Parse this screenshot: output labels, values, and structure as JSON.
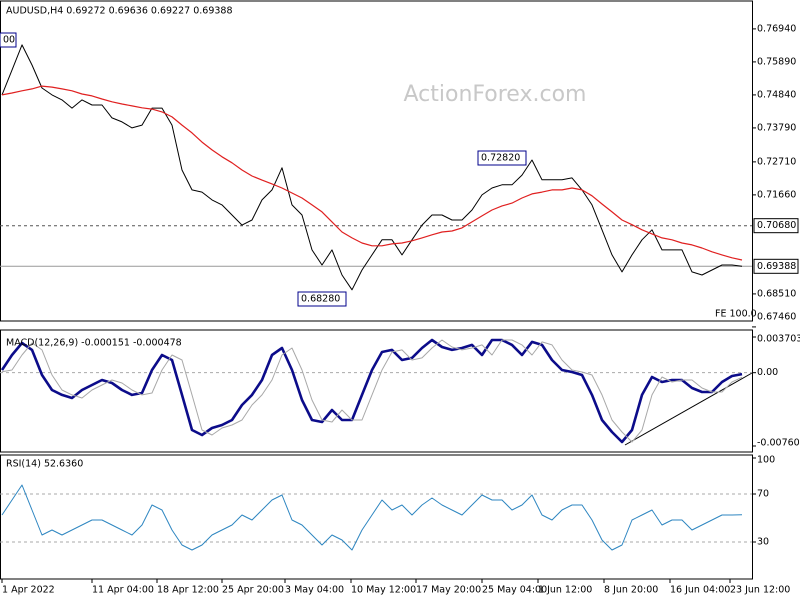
{
  "chart_data": [
    {
      "type": "line",
      "title": "AUDUSD,H4  0.69272 0.69636 0.69227 0.69388",
      "watermark": "ActionForex.com",
      "xlim": [
        -0.2,
        75
      ],
      "ylim": [
        0.6768,
        0.777
      ],
      "yticks": [
        {
          "value": 0.7694,
          "label": "0.76940"
        },
        {
          "value": 0.7589,
          "label": "0.75890"
        },
        {
          "value": 0.7484,
          "label": "0.74840"
        },
        {
          "value": 0.7379,
          "label": "0.73790"
        },
        {
          "value": 0.7271,
          "label": "0.72710"
        },
        {
          "value": 0.7166,
          "label": "0.71660"
        },
        {
          "value": 0.6851,
          "label": "0.68510"
        },
        {
          "value": 0.6746,
          "label": "0.67460"
        }
      ],
      "hlines": [
        {
          "value": 0.7068,
          "label": "0.70680",
          "style": "dashed"
        },
        {
          "value": 0.69388,
          "label": "0.69388",
          "style": "solid"
        }
      ],
      "annotations": [
        "00",
        "0.72820",
        "0.68280",
        "FE 100.0"
      ],
      "series": [
        {
          "name": "AUDUSD",
          "color": "#000000",
          "width": 1,
          "values": [
            0.7484,
            0.7563,
            0.7643,
            0.7579,
            0.7506,
            0.7484,
            0.7468,
            0.7442,
            0.7468,
            0.7452,
            0.7452,
            0.7411,
            0.7398,
            0.7379,
            0.7388,
            0.7442,
            0.7442,
            0.7388,
            0.7245,
            0.7182,
            0.7175,
            0.715,
            0.7134,
            0.7102,
            0.707,
            0.7086,
            0.715,
            0.7182,
            0.7252,
            0.7134,
            0.7102,
            0.6991,
            0.6943,
            0.6991,
            0.6911,
            0.6864,
            0.6927,
            0.6975,
            0.7023,
            0.7023,
            0.6975,
            0.7023,
            0.707,
            0.7102,
            0.7102,
            0.7086,
            0.7086,
            0.7118,
            0.7166,
            0.7188,
            0.7198,
            0.7198,
            0.7229,
            0.7277,
            0.7214,
            0.7214,
            0.7214,
            0.722,
            0.7182,
            0.7134,
            0.7055,
            0.6975,
            0.6921,
            0.6975,
            0.7023,
            0.7055,
            0.6991,
            0.6991,
            0.6991,
            0.6921,
            0.6911,
            0.6927,
            0.6943,
            0.6943,
            0.69388
          ]
        },
        {
          "name": "MA",
          "color": "#e02020",
          "width": 1.2,
          "values": [
            0.7484,
            0.749,
            0.7497,
            0.7503,
            0.7512,
            0.7509,
            0.7503,
            0.7497,
            0.7487,
            0.7481,
            0.7471,
            0.7462,
            0.7455,
            0.7449,
            0.7443,
            0.7439,
            0.743,
            0.7414,
            0.7388,
            0.7363,
            0.7334,
            0.7309,
            0.7287,
            0.7268,
            0.7245,
            0.7226,
            0.7213,
            0.7201,
            0.7188,
            0.7172,
            0.7156,
            0.7134,
            0.7112,
            0.708,
            0.7048,
            0.7029,
            0.7013,
            0.7004,
            0.7004,
            0.701,
            0.7013,
            0.702,
            0.7029,
            0.7039,
            0.7048,
            0.7051,
            0.7061,
            0.708,
            0.7099,
            0.7118,
            0.7131,
            0.714,
            0.7156,
            0.7169,
            0.7175,
            0.7182,
            0.7182,
            0.7188,
            0.7182,
            0.7163,
            0.7137,
            0.7112,
            0.7086,
            0.7071,
            0.7055,
            0.7042,
            0.7029,
            0.7023,
            0.7013,
            0.7007,
            0.6997,
            0.6985,
            0.6975,
            0.6966,
            0.6959
          ]
        }
      ]
    },
    {
      "type": "line",
      "title": "MACD(12,26,9) -0.000151 -0.000478",
      "xlim": [
        -0.2,
        75
      ],
      "ylim": [
        -0.007608,
        0.003703
      ],
      "yticks": [
        0.003703,
        {
          "value": 0,
          "label": "0.00"
        },
        -0.007608
      ],
      "series": [
        {
          "name": "MACD",
          "color": "#0c0c8a",
          "width": 2.6,
          "values": [
            0.00028,
            0.00184,
            0.00308,
            0.00236,
            -0.00024,
            -0.0018,
            -0.00231,
            -0.00263,
            -0.0018,
            -0.00128,
            -0.00076,
            -0.00107,
            -0.0018,
            -0.00231,
            -0.00211,
            0.00028,
            0.00184,
            0.00132,
            -0.00231,
            -0.00595,
            -0.00647,
            -0.00574,
            -0.00543,
            -0.00491,
            -0.00335,
            -0.00231,
            -0.00076,
            0.00184,
            0.00256,
            0.00028,
            -0.00283,
            -0.00491,
            -0.00512,
            -0.00387,
            -0.00491,
            -0.00491,
            -0.00231,
            0.00028,
            0.00215,
            0.00236,
            0.00132,
            0.00153,
            0.00256,
            0.00339,
            0.00267,
            0.00236,
            0.00256,
            0.00288,
            0.00184,
            0.00339,
            0.00339,
            0.00288,
            0.00184,
            0.00319,
            0.00288,
            0.00132,
            0.00028,
            7e-05,
            -0.00024,
            -0.00231,
            -0.00491,
            -0.00616,
            -0.00719,
            -0.00595,
            -0.00231,
            -0.00045,
            -0.00097,
            -0.00076,
            -0.00076,
            -0.00159,
            -0.002,
            -0.002,
            -0.00097,
            -0.00034,
            -0.000151
          ]
        },
        {
          "name": "Signal",
          "color": "#a8a8a8",
          "width": 1,
          "values": [
            0.0001,
            0.00028,
            0.00184,
            0.00308,
            0.00236,
            -0.00024,
            -0.0018,
            -0.00231,
            -0.00263,
            -0.0018,
            -0.00128,
            -0.00076,
            -0.00107,
            -0.0018,
            -0.00231,
            -0.00211,
            0.00028,
            0.00184,
            0.00132,
            -0.00231,
            -0.00595,
            -0.00647,
            -0.00574,
            -0.00543,
            -0.00491,
            -0.00335,
            -0.00231,
            -0.00076,
            0.00184,
            0.00256,
            0.00028,
            -0.00283,
            -0.00491,
            -0.00512,
            -0.00387,
            -0.00491,
            -0.00491,
            -0.00231,
            0.00028,
            0.00215,
            0.00236,
            0.00132,
            0.00153,
            0.00256,
            0.00339,
            0.00267,
            0.00236,
            0.00256,
            0.00288,
            0.00184,
            0.00339,
            0.00339,
            0.00288,
            0.00184,
            0.00319,
            0.00288,
            0.00132,
            0.00028,
            7e-05,
            -0.00024,
            -0.00231,
            -0.00491,
            -0.00616,
            -0.00719,
            -0.00595,
            -0.00231,
            -0.00045,
            -0.00097,
            -0.00076,
            -0.00076,
            -0.00159,
            -0.002,
            -0.002,
            -0.00097,
            -0.000478
          ]
        }
      ]
    },
    {
      "type": "line",
      "title": "RSI(14) 52.6360",
      "xlim": [
        -0.2,
        75
      ],
      "ylim": [
        0,
        100
      ],
      "yticks": [
        100,
        70,
        30
      ],
      "xticks": [
        {
          "value": 0,
          "label": "1 Apr 2022"
        },
        {
          "value": 9,
          "label": "11 Apr 04:00"
        },
        {
          "value": 15.5,
          "label": "18 Apr 12:00"
        },
        {
          "value": 22,
          "label": "25 Apr 20:00"
        },
        {
          "value": 28.3,
          "label": "3 May 04:00"
        },
        {
          "value": 34.9,
          "label": "10 May 12:00"
        },
        {
          "value": 41.4,
          "label": "17 May 20:00"
        },
        {
          "value": 48,
          "label": "25 May 04:00"
        },
        {
          "value": 53.6,
          "label": "1 Jun 12:00"
        },
        {
          "value": 60.2,
          "label": "8 Jun 20:00"
        },
        {
          "value": 66.8,
          "label": "16 Jun 04:00"
        },
        {
          "value": 72.8,
          "label": "23 Jun 12:00"
        }
      ],
      "series": [
        {
          "name": "RSI",
          "color": "#2e86c1",
          "width": 1,
          "values": [
            52.5,
            65,
            77.5,
            56.7,
            35.8,
            40,
            35.8,
            40,
            44.2,
            48.3,
            48.3,
            44.2,
            40,
            35.8,
            44.2,
            60.8,
            56.7,
            40,
            27.5,
            23.3,
            27.5,
            35.8,
            40,
            44.2,
            52.5,
            48.3,
            56.7,
            65,
            69.2,
            48.3,
            44.2,
            35.8,
            27.5,
            35.8,
            31.7,
            23.3,
            40,
            52.5,
            65,
            56.7,
            60.8,
            52.5,
            60.8,
            66.7,
            60.8,
            56.7,
            52.5,
            60.8,
            69.2,
            65,
            65,
            56.7,
            60.8,
            69.2,
            52.5,
            48.3,
            56.7,
            60.8,
            60.8,
            48.3,
            31.7,
            23.3,
            27.5,
            48.3,
            52.5,
            56.7,
            44.2,
            48.3,
            48.3,
            40,
            44.2,
            48.3,
            52.5,
            52.5,
            52.636
          ]
        }
      ]
    }
  ]
}
